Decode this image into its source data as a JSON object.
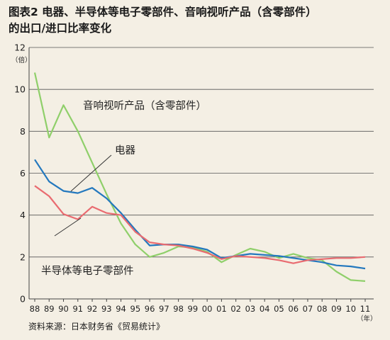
{
  "chart_data": {
    "type": "line",
    "title_line1": "图表2 电器、半导体等电子零部件、音响视听产品（含零部件）",
    "title_line2": "的出口/进口比率变化",
    "y_unit": "（倍）",
    "x_unit": "（年）",
    "source": "资料来源：日本财务省《贸易统计》",
    "ylim": [
      0,
      12
    ],
    "yticks": [
      0,
      2,
      4,
      6,
      8,
      10,
      12
    ],
    "categories": [
      "88",
      "89",
      "90",
      "91",
      "92",
      "93",
      "94",
      "95",
      "96",
      "97",
      "98",
      "99",
      "00",
      "01",
      "02",
      "03",
      "04",
      "05",
      "06",
      "07",
      "08",
      "09",
      "10",
      "11"
    ],
    "grid": "horizontal",
    "series": [
      {
        "name": "音响视听产品（含零部件）",
        "color": "#8fcf6a",
        "values": [
          10.8,
          7.7,
          9.25,
          8.0,
          6.5,
          5.0,
          3.6,
          2.6,
          2.0,
          2.2,
          2.5,
          2.45,
          2.25,
          1.75,
          2.1,
          2.4,
          2.25,
          1.95,
          2.15,
          1.95,
          1.85,
          1.3,
          0.9,
          0.85
        ]
      },
      {
        "name": "电器",
        "color": "#2378be",
        "values": [
          6.65,
          5.6,
          5.15,
          5.05,
          5.3,
          4.8,
          4.1,
          3.3,
          2.55,
          2.6,
          2.6,
          2.5,
          2.35,
          1.95,
          2.05,
          2.15,
          2.1,
          2.05,
          1.95,
          1.85,
          1.75,
          1.6,
          1.55,
          1.45
        ]
      },
      {
        "name": "半导体等电子零部件",
        "color": "#e96b70",
        "values": [
          5.4,
          4.9,
          4.05,
          3.8,
          4.4,
          4.1,
          4.0,
          3.2,
          2.7,
          2.6,
          2.55,
          2.4,
          2.2,
          1.9,
          2.05,
          2.0,
          1.95,
          1.85,
          1.7,
          1.85,
          1.9,
          1.95,
          1.95,
          2.0
        ]
      }
    ]
  }
}
